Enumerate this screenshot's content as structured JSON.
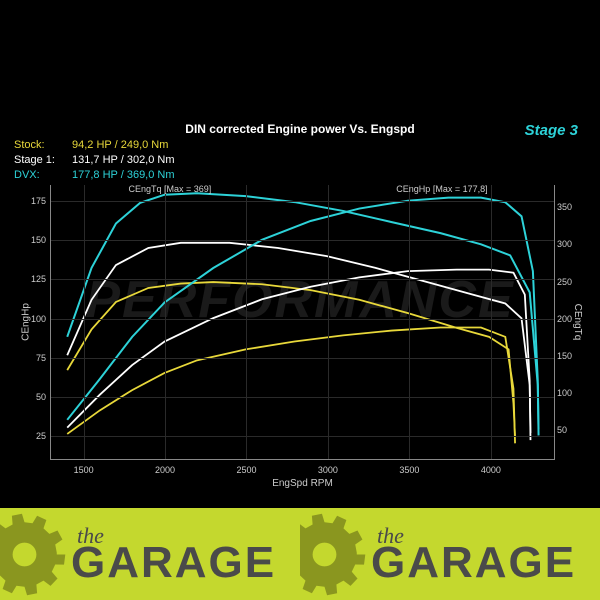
{
  "chart": {
    "title": "DIN corrected Engine power Vs. Engspd",
    "stage": {
      "text": "Stage 3",
      "color": "#2dd2d8"
    },
    "background_color": "#000000",
    "grid_color": "#2a2a2a",
    "border_color": "#888888",
    "text_color": "#cccccc",
    "title_fontsize": 12,
    "tick_fontsize": 9,
    "label_fontsize": 10,
    "x": {
      "label": "EngSpd RPM",
      "min": 1300,
      "max": 4400,
      "ticks": [
        1500,
        2000,
        2500,
        3000,
        3500,
        4000
      ]
    },
    "y_left": {
      "label": "CEngHp",
      "min": 10,
      "max": 185,
      "ticks": [
        25,
        50,
        75,
        100,
        125,
        150,
        175
      ]
    },
    "y_right": {
      "label": "CEngTq",
      "min": 10,
      "max": 380,
      "ticks": [
        50,
        100,
        150,
        200,
        250,
        300,
        350
      ]
    },
    "annotations": [
      {
        "text": "CEngTq [Max = 369]",
        "rpm": 2030,
        "hp": 178
      },
      {
        "text": "CEngHp [Max = 177,8]",
        "rpm": 3700,
        "hp": 178
      }
    ],
    "legend": [
      {
        "label": "Stock:",
        "value": "94,2 HP / 249,0 Nm",
        "color": "#e8d83a"
      },
      {
        "label": "Stage 1:",
        "value": "131,7 HP / 302,0 Nm",
        "color": "#ffffff"
      },
      {
        "label": "DVX:",
        "value": "177,8 HP / 369,0 Nm",
        "color": "#2dd2d8"
      }
    ],
    "series": [
      {
        "name": "stock_hp",
        "axis": "left",
        "color": "#e8d83a",
        "width": 1.8,
        "data": [
          [
            1400,
            26
          ],
          [
            1600,
            41
          ],
          [
            1800,
            54
          ],
          [
            2000,
            65
          ],
          [
            2200,
            73
          ],
          [
            2500,
            80
          ],
          [
            2800,
            85
          ],
          [
            3100,
            89
          ],
          [
            3400,
            92
          ],
          [
            3700,
            94
          ],
          [
            3950,
            94
          ],
          [
            4100,
            88
          ],
          [
            4150,
            55
          ],
          [
            4160,
            20
          ]
        ]
      },
      {
        "name": "stock_tq",
        "axis": "right",
        "color": "#e8d83a",
        "width": 1.8,
        "data": [
          [
            1400,
            130
          ],
          [
            1550,
            185
          ],
          [
            1700,
            222
          ],
          [
            1900,
            241
          ],
          [
            2100,
            247
          ],
          [
            2300,
            249
          ],
          [
            2600,
            246
          ],
          [
            2900,
            238
          ],
          [
            3200,
            225
          ],
          [
            3500,
            207
          ],
          [
            3800,
            187
          ],
          [
            4000,
            175
          ],
          [
            4120,
            158
          ],
          [
            4150,
            85
          ],
          [
            4160,
            40
          ]
        ]
      },
      {
        "name": "stage1_hp",
        "axis": "left",
        "color": "#ffffff",
        "width": 1.8,
        "data": [
          [
            1400,
            30
          ],
          [
            1600,
            51
          ],
          [
            1800,
            70
          ],
          [
            2000,
            85
          ],
          [
            2300,
            100
          ],
          [
            2600,
            112
          ],
          [
            2900,
            120
          ],
          [
            3200,
            126
          ],
          [
            3500,
            130
          ],
          [
            3800,
            131
          ],
          [
            4000,
            131
          ],
          [
            4150,
            129
          ],
          [
            4220,
            115
          ],
          [
            4250,
            60
          ],
          [
            4255,
            22
          ]
        ]
      },
      {
        "name": "stage1_tq",
        "axis": "right",
        "color": "#ffffff",
        "width": 1.8,
        "data": [
          [
            1400,
            150
          ],
          [
            1550,
            225
          ],
          [
            1700,
            272
          ],
          [
            1900,
            295
          ],
          [
            2100,
            302
          ],
          [
            2400,
            302
          ],
          [
            2700,
            295
          ],
          [
            3000,
            284
          ],
          [
            3300,
            268
          ],
          [
            3600,
            250
          ],
          [
            3900,
            232
          ],
          [
            4100,
            220
          ],
          [
            4200,
            200
          ],
          [
            4250,
            110
          ],
          [
            4255,
            45
          ]
        ]
      },
      {
        "name": "dvx_hp",
        "axis": "left",
        "color": "#2dd2d8",
        "width": 2.0,
        "data": [
          [
            1400,
            35
          ],
          [
            1600,
            61
          ],
          [
            1800,
            88
          ],
          [
            2000,
            110
          ],
          [
            2300,
            132
          ],
          [
            2600,
            150
          ],
          [
            2900,
            162
          ],
          [
            3200,
            170
          ],
          [
            3500,
            175
          ],
          [
            3750,
            177
          ],
          [
            3950,
            177
          ],
          [
            4100,
            174
          ],
          [
            4200,
            165
          ],
          [
            4270,
            130
          ],
          [
            4300,
            60
          ],
          [
            4305,
            25
          ]
        ]
      },
      {
        "name": "dvx_tq",
        "axis": "right",
        "color": "#2dd2d8",
        "width": 2.0,
        "data": [
          [
            1400,
            175
          ],
          [
            1550,
            268
          ],
          [
            1700,
            328
          ],
          [
            1850,
            356
          ],
          [
            2000,
            367
          ],
          [
            2200,
            369
          ],
          [
            2500,
            365
          ],
          [
            2800,
            357
          ],
          [
            3100,
            345
          ],
          [
            3400,
            330
          ],
          [
            3700,
            315
          ],
          [
            3950,
            300
          ],
          [
            4130,
            285
          ],
          [
            4250,
            235
          ],
          [
            4300,
            110
          ],
          [
            4305,
            50
          ]
        ]
      }
    ]
  },
  "banner": {
    "bg_color": "#c4d82e",
    "text_color": "#4a4a4a",
    "gear_color": "#8a961f",
    "the": "the",
    "garage": "GARAGE"
  }
}
